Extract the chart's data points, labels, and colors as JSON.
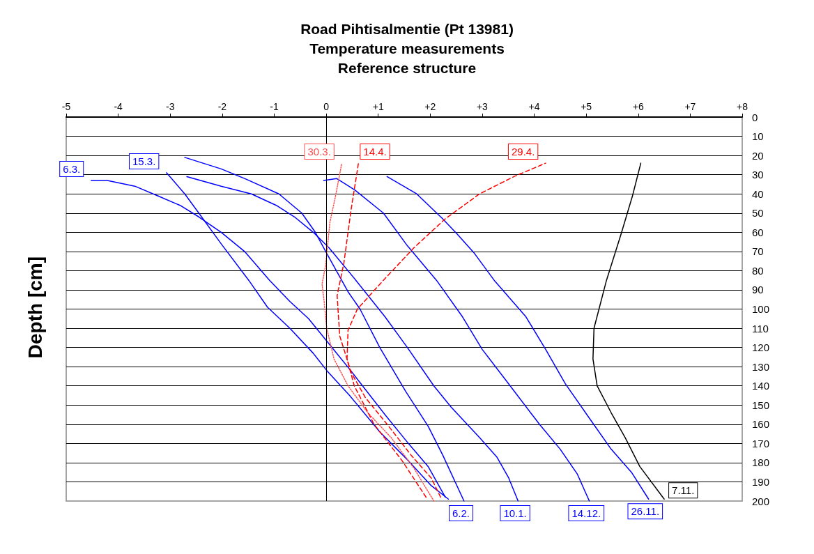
{
  "chart_data": {
    "type": "line",
    "title": "Road Pihtisalmentie (Pt 13981)\nTemperature measurements\nReference structure",
    "ylabel": "Depth [cm]",
    "xlim": [
      -5,
      8
    ],
    "xticks": [
      -5,
      -4,
      -3,
      -2,
      -1,
      0,
      {
        "value": 1,
        "label": "+1"
      },
      {
        "value": 2,
        "label": "+2"
      },
      {
        "value": 3,
        "label": "+3"
      },
      {
        "value": 4,
        "label": "+4"
      },
      {
        "value": 5,
        "label": "+5"
      },
      {
        "value": 6,
        "label": "+6"
      },
      {
        "value": 7,
        "label": "+7"
      },
      {
        "value": 8,
        "label": "+8"
      }
    ],
    "ylim": [
      200,
      0
    ],
    "yticks": [
      0,
      10,
      20,
      30,
      40,
      50,
      60,
      70,
      80,
      90,
      100,
      110,
      120,
      130,
      140,
      150,
      160,
      170,
      180,
      190,
      200
    ],
    "grid": "y",
    "marker": "none",
    "ref_lines": [
      {
        "axis": "x",
        "value": 0,
        "color": "#000000"
      }
    ],
    "series": [
      {
        "name": "6.3.",
        "color": "#0000ff",
        "line_style": "solid",
        "x": [
          2.29,
          1.96,
          1.58,
          1.13,
          0.47,
          -0.01,
          -0.34,
          -0.7,
          -1.09,
          -1.57,
          -2.02,
          -2.45,
          -2.81,
          -3.24,
          -3.68,
          -4.21,
          -4.52
        ],
        "values": [
          198,
          182,
          170,
          155,
          132,
          116,
          105,
          96,
          85,
          70,
          60,
          52,
          46,
          41,
          36,
          33,
          33
        ]
      },
      {
        "name": "15.3.",
        "color": "#0000ff",
        "line_style": "solid",
        "x": [
          2.35,
          2.02,
          1.58,
          1.03,
          0.45,
          0.01,
          -0.25,
          -0.7,
          -1.13,
          -1.49,
          -2.02,
          -2.45,
          -2.72,
          -3.07
        ],
        "values": [
          199,
          192,
          179,
          164,
          145,
          132,
          123,
          110,
          99,
          85,
          66,
          50,
          40,
          29
        ]
      },
      {
        "name": "6.2.",
        "color": "#0000ff",
        "line_style": "solid",
        "x": [
          -2.72,
          -2.02,
          -1.57,
          -0.91,
          -0.47,
          -0.21,
          0.01,
          0.42,
          0.65,
          1.03,
          1.53,
          1.96,
          2.24,
          2.65
        ],
        "values": [
          21,
          27,
          32,
          40,
          50,
          60,
          71,
          91,
          100,
          120,
          143,
          161,
          176,
          200
        ]
      },
      {
        "name": "10.1.",
        "color": "#0000ff",
        "line_style": "solid",
        "x": [
          -2.68,
          -2.02,
          -1.44,
          -0.96,
          -0.61,
          -0.25,
          0.05,
          0.57,
          1.13,
          1.56,
          2.07,
          2.4,
          2.95,
          3.28,
          3.51,
          3.69
        ],
        "values": [
          31,
          36,
          40,
          46,
          52,
          60,
          68,
          85,
          104,
          120,
          140,
          151,
          167,
          177,
          188,
          200
        ]
      },
      {
        "name": "14.12.",
        "color": "#0000ff",
        "line_style": "solid",
        "x": [
          -0.05,
          0.2,
          0.55,
          1.1,
          1.56,
          2.12,
          2.62,
          3.0,
          3.51,
          4.1,
          4.5,
          4.83,
          5.06
        ],
        "values": [
          33,
          32,
          38,
          50,
          67,
          85,
          104,
          121,
          139,
          160,
          173,
          186,
          200
        ]
      },
      {
        "name": "26.11.",
        "color": "#0000ff",
        "line_style": "solid",
        "x": [
          1.17,
          1.74,
          2.24,
          2.52,
          2.85,
          3.23,
          3.84,
          4.22,
          4.6,
          5.09,
          5.48,
          5.87,
          6.2
        ],
        "values": [
          31,
          40,
          53,
          61,
          71,
          85,
          104,
          121,
          139,
          158,
          173,
          185,
          199
        ]
      },
      {
        "name": "7.11.",
        "color": "#000000",
        "line_style": "solid",
        "x": [
          6.05,
          5.89,
          5.67,
          5.39,
          5.15,
          5.13,
          5.21,
          5.48,
          5.75,
          6.03,
          6.5
        ],
        "values": [
          24,
          41,
          61,
          85,
          110,
          126,
          140,
          154,
          167,
          182,
          199
        ]
      },
      {
        "name": "30.3.",
        "color": "#ff5050",
        "line_style": "dotted",
        "x": [
          2.07,
          1.69,
          1.25,
          0.8,
          0.42,
          0.15,
          0.01,
          -0.04,
          -0.08,
          -0.01,
          0.07,
          0.18,
          0.3
        ],
        "values": [
          200,
          183,
          167,
          154,
          140,
          126,
          110,
          96,
          87,
          77,
          55,
          41,
          24
        ]
      },
      {
        "name": "14.4.",
        "color": "#ff0000",
        "line_style": "dashed",
        "x": [
          2.2,
          2.02,
          1.63,
          1.2,
          0.75,
          0.48,
          0.26,
          0.21,
          0.34,
          0.48,
          0.62
        ],
        "values": [
          198,
          188,
          176,
          161,
          146,
          133,
          114,
          93,
          76,
          48,
          24
        ]
      },
      {
        "name": "29.4.",
        "color": "#ff0000",
        "line_style": "dashed",
        "x": [
          1.92,
          1.46,
          0.92,
          0.54,
          0.4,
          0.42,
          0.6,
          1.1,
          1.69,
          2.29,
          2.95,
          3.61,
          4.22
        ],
        "values": [
          198,
          179,
          160,
          140,
          126,
          111,
          100,
          85,
          68,
          53,
          40,
          31,
          24
        ]
      }
    ]
  }
}
